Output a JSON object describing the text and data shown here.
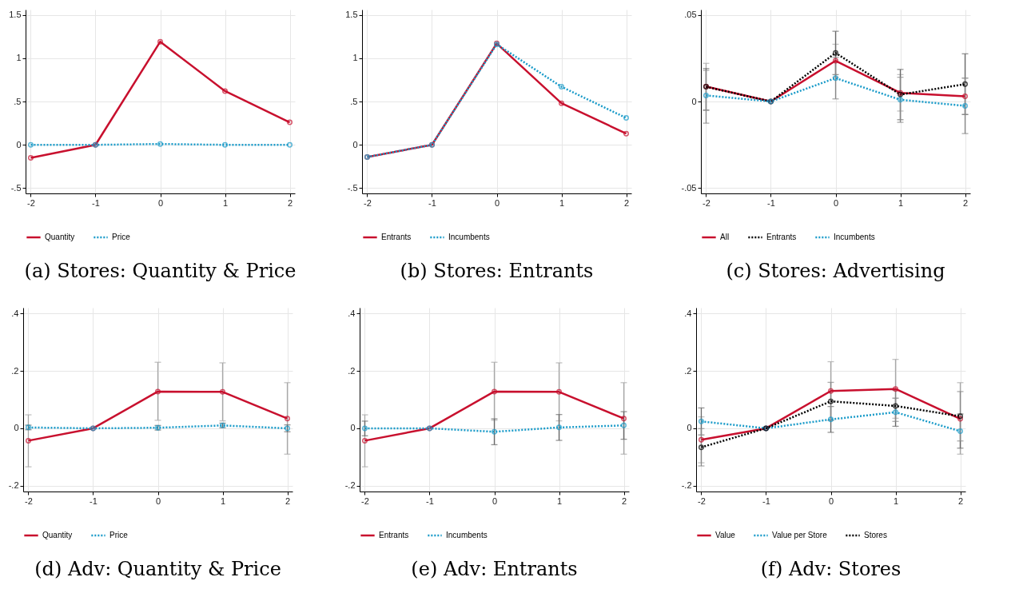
{
  "chart_data": [
    {
      "type": "line",
      "title": "(a) Stores: Quantity & Price",
      "x": [
        -2,
        -1,
        0,
        1,
        2
      ],
      "xlim": [
        -2.08,
        2.08
      ],
      "xticks": [
        -2,
        -1,
        0,
        1,
        2
      ],
      "ylim": [
        -0.56,
        1.56
      ],
      "yticks": [
        {
          "value": -0.5,
          "label": "-.5"
        },
        0,
        {
          "value": 0.5,
          "label": ".5"
        },
        1,
        1.5
      ],
      "grid": true,
      "legend": "bottom",
      "marker": "circle",
      "series": [
        {
          "name": "Quantity",
          "color": "#c8102e",
          "line_style": "solid",
          "values": [
            -0.15,
            0,
            1.19,
            0.62,
            0.26
          ]
        },
        {
          "name": "Price",
          "color": "#1a9bc9",
          "line_style": "dotted",
          "values": [
            0,
            0,
            0.01,
            0,
            0
          ]
        }
      ]
    },
    {
      "type": "line",
      "title": "(b) Stores: Entrants",
      "x": [
        -2,
        -1,
        0,
        1,
        2
      ],
      "xlim": [
        -2.08,
        2.08
      ],
      "xticks": [
        -2,
        -1,
        0,
        1,
        2
      ],
      "ylim": [
        -0.56,
        1.56
      ],
      "yticks": [
        {
          "value": -0.5,
          "label": "-.5"
        },
        0,
        {
          "value": 0.5,
          "label": ".5"
        },
        1,
        1.5
      ],
      "grid": true,
      "legend": "bottom",
      "marker": "circle",
      "series": [
        {
          "name": "Entrants",
          "color": "#c8102e",
          "line_style": "solid",
          "values": [
            -0.14,
            0,
            1.17,
            0.48,
            0.13
          ]
        },
        {
          "name": "Incumbents",
          "color": "#1a9bc9",
          "line_style": "dotted",
          "values": [
            -0.14,
            0,
            1.16,
            0.67,
            0.31
          ]
        }
      ]
    },
    {
      "type": "line",
      "title": "(c) Stores: Advertising",
      "x": [
        -2,
        -1,
        0,
        1,
        2
      ],
      "xlim": [
        -2.08,
        2.08
      ],
      "xticks": [
        -2,
        -1,
        0,
        1,
        2
      ],
      "ylim": [
        -0.053,
        0.053
      ],
      "yticks": [
        {
          "value": -0.05,
          "label": "-.05"
        },
        0,
        {
          "value": 0.05,
          "label": ".05"
        }
      ],
      "grid": true,
      "legend": "bottom",
      "marker": "circle",
      "series": [
        {
          "name": "All",
          "color": "#c8102e",
          "line_style": "solid",
          "values": [
            0.0086,
            0,
            0.0235,
            0.005,
            0.003
          ],
          "errors": [
            [
              -0.005,
              0.022
            ],
            null,
            [
              0.014,
              0.033
            ],
            [
              -0.0055,
              0.0155
            ],
            [
              -0.0075,
              0.0135
            ]
          ]
        },
        {
          "name": "Entrants",
          "color": "#000000",
          "line_style": "dotted",
          "values": [
            0.0085,
            0,
            0.028,
            0.004,
            0.01
          ],
          "errors": [
            [
              -0.005,
              0.019
            ],
            null,
            [
              0.0155,
              0.0405
            ],
            [
              -0.0105,
              0.0185
            ],
            [
              -0.0075,
              0.0275
            ]
          ]
        },
        {
          "name": "Incumbents",
          "color": "#1a9bc9",
          "line_style": "dotted",
          "values": [
            0.0035,
            0,
            0.0135,
            0.001,
            -0.0025
          ],
          "errors": [
            [
              -0.0125,
              0.018
            ],
            null,
            [
              0.0015,
              0.0255
            ],
            [
              -0.012,
              0.014
            ],
            [
              -0.0185,
              0.0135
            ]
          ]
        }
      ]
    },
    {
      "type": "line",
      "title": "(d) Adv: Quantity & Price",
      "x": [
        -2,
        -1,
        0,
        1,
        2
      ],
      "xlim": [
        -2.08,
        2.08
      ],
      "xticks": [
        -2,
        -1,
        0,
        1,
        2
      ],
      "ylim": [
        -0.22,
        0.42
      ],
      "yticks": [
        {
          "value": -0.2,
          "label": "-.2"
        },
        0,
        {
          "value": 0.2,
          "label": ".2"
        },
        {
          "value": 0.4,
          "label": ".4"
        }
      ],
      "grid": true,
      "legend": "bottom",
      "marker": "circle",
      "series": [
        {
          "name": "Quantity",
          "color": "#c8102e",
          "line_style": "solid",
          "values": [
            -0.043,
            0,
            0.128,
            0.127,
            0.034
          ],
          "errors": [
            [
              -0.134,
              0.047
            ],
            null,
            [
              0.028,
              0.23
            ],
            [
              0.026,
              0.228
            ],
            [
              -0.09,
              0.159
            ]
          ]
        },
        {
          "name": "Price",
          "color": "#1a9bc9",
          "line_style": "dotted",
          "values": [
            0.003,
            0,
            0.002,
            0.01,
            0
          ],
          "errors": [
            [
              -0.005,
              0.011
            ],
            null,
            [
              -0.006,
              0.01
            ],
            [
              0.002,
              0.018
            ],
            [
              -0.012,
              0.012
            ]
          ]
        }
      ]
    },
    {
      "type": "line",
      "title": "(e) Adv: Entrants",
      "x": [
        -2,
        -1,
        0,
        1,
        2
      ],
      "xlim": [
        -2.08,
        2.08
      ],
      "xticks": [
        -2,
        -1,
        0,
        1,
        2
      ],
      "ylim": [
        -0.22,
        0.42
      ],
      "yticks": [
        {
          "value": -0.2,
          "label": "-.2"
        },
        0,
        {
          "value": 0.2,
          "label": ".2"
        },
        {
          "value": 0.4,
          "label": ".4"
        }
      ],
      "grid": true,
      "legend": "bottom",
      "marker": "circle",
      "series": [
        {
          "name": "Entrants",
          "color": "#c8102e",
          "line_style": "solid",
          "values": [
            -0.043,
            0,
            0.128,
            0.127,
            0.034
          ],
          "errors": [
            [
              -0.134,
              0.047
            ],
            null,
            [
              0.028,
              0.23
            ],
            [
              0.026,
              0.228
            ],
            [
              -0.09,
              0.159
            ]
          ]
        },
        {
          "name": "Incumbents",
          "color": "#1a9bc9",
          "line_style": "dotted",
          "values": [
            0,
            0,
            -0.012,
            0.003,
            0.01
          ],
          "errors": [
            [
              -0.026,
              0.025
            ],
            null,
            [
              -0.057,
              0.033
            ],
            [
              -0.042,
              0.048
            ],
            [
              -0.038,
              0.058
            ]
          ]
        }
      ]
    },
    {
      "type": "line",
      "title": "(f) Adv: Stores",
      "x": [
        -2,
        -1,
        0,
        1,
        2
      ],
      "xlim": [
        -2.08,
        2.08
      ],
      "xticks": [
        -2,
        -1,
        0,
        1,
        2
      ],
      "ylim": [
        -0.22,
        0.42
      ],
      "yticks": [
        {
          "value": -0.2,
          "label": "-.2"
        },
        0,
        {
          "value": 0.2,
          "label": ".2"
        },
        {
          "value": 0.4,
          "label": ".4"
        }
      ],
      "grid": true,
      "legend": "bottom",
      "marker": "circle",
      "series": [
        {
          "name": "Value",
          "color": "#c8102e",
          "line_style": "solid",
          "values": [
            -0.04,
            0,
            0.13,
            0.137,
            0.033
          ],
          "errors": [
            [
              -0.12,
              0.04
            ],
            null,
            [
              0.028,
              0.232
            ],
            [
              0.035,
              0.24
            ],
            [
              -0.09,
              0.159
            ]
          ]
        },
        {
          "name": "Value per Store",
          "color": "#1a9bc9",
          "line_style": "dotted",
          "values": [
            0.024,
            0,
            0.031,
            0.056,
            -0.01
          ],
          "errors": [
            [
              -0.023,
              0.071
            ],
            null,
            [
              -0.014,
              0.076
            ],
            [
              0.007,
              0.105
            ],
            [
              -0.069,
              0.05
            ]
          ]
        },
        {
          "name": "Stores",
          "color": "#000000",
          "line_style": "dotted",
          "values": [
            -0.066,
            0,
            0.094,
            0.078,
            0.042
          ],
          "errors": [
            [
              -0.131,
              -0.001
            ],
            null,
            [
              0.028,
              0.16
            ],
            [
              0.024,
              0.132
            ],
            [
              -0.044,
              0.128
            ]
          ]
        }
      ]
    }
  ]
}
